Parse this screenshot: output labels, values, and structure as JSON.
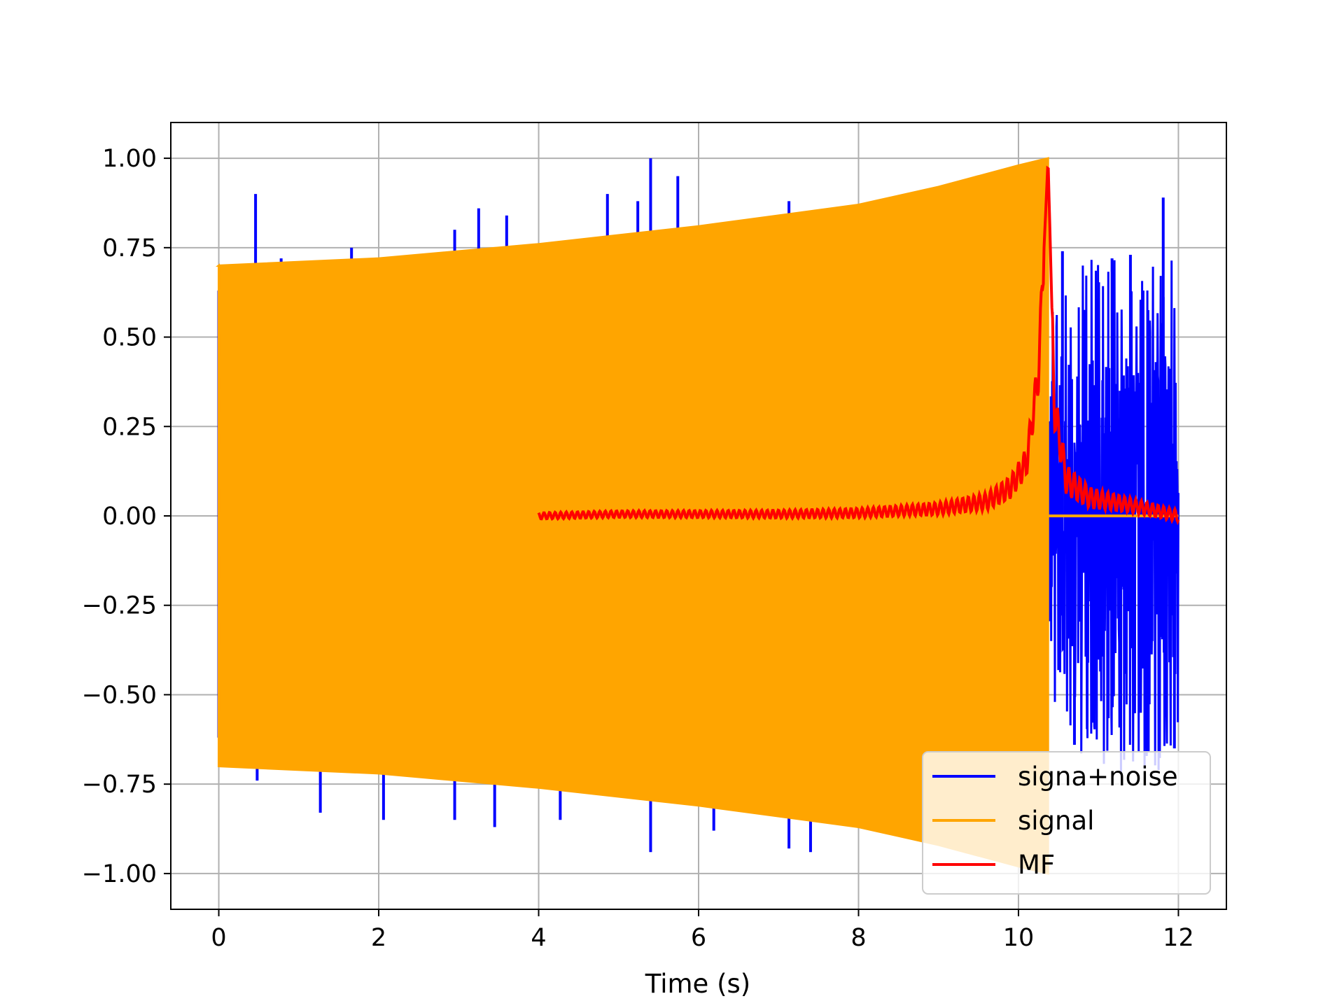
{
  "chart_data": {
    "type": "line",
    "title": "",
    "xlabel": "Time (s)",
    "ylabel": "",
    "xlim": [
      -0.6,
      12.6
    ],
    "ylim": [
      -1.1,
      1.1
    ],
    "grid": true,
    "legend_position": "bottom-right",
    "xticks": [
      0,
      2,
      4,
      6,
      8,
      10,
      12
    ],
    "xtick_labels": [
      "0",
      "2",
      "4",
      "6",
      "8",
      "10",
      "12"
    ],
    "yticks": [
      1.0,
      0.75,
      0.5,
      0.25,
      0.0,
      -0.25,
      -0.5,
      -0.75,
      -1.0
    ],
    "ytick_labels": [
      "1.00",
      "0.75",
      "0.50",
      "0.25",
      "0.00",
      "−0.25",
      "−0.50",
      "−0.75",
      "−1.00"
    ],
    "series": [
      {
        "name": "signa+noise",
        "color": "#0000ff",
        "description_points": {
          "spikes": [
            {
              "x": 0.46,
              "y": 0.9
            },
            {
              "x": 0.48,
              "y": -0.74
            },
            {
              "x": 0.78,
              "y": 0.72
            },
            {
              "x": 1.27,
              "y": -0.83
            },
            {
              "x": 1.66,
              "y": 0.75
            },
            {
              "x": 2.06,
              "y": -0.85
            },
            {
              "x": 2.95,
              "y": 0.8
            },
            {
              "x": 2.95,
              "y": -0.85
            },
            {
              "x": 3.25,
              "y": 0.86
            },
            {
              "x": 3.45,
              "y": -0.87
            },
            {
              "x": 3.6,
              "y": 0.84
            },
            {
              "x": 4.27,
              "y": -0.85
            },
            {
              "x": 4.86,
              "y": 0.9
            },
            {
              "x": 5.24,
              "y": 0.88
            },
            {
              "x": 5.4,
              "y": 1.0
            },
            {
              "x": 5.4,
              "y": -0.94
            },
            {
              "x": 5.74,
              "y": 0.95
            },
            {
              "x": 6.19,
              "y": -0.88
            },
            {
              "x": 7.13,
              "y": 0.88
            },
            {
              "x": 7.13,
              "y": -0.93
            },
            {
              "x": 7.4,
              "y": -0.94
            }
          ],
          "tail_start": 10.37,
          "tail_end": 12.0,
          "tail_peaks": [
            {
              "x": 10.55,
              "y": 0.74
            },
            {
              "x": 11.17,
              "y": 0.72
            },
            {
              "x": 11.4,
              "y": 0.73
            },
            {
              "x": 11.81,
              "y": 0.89
            },
            {
              "x": 10.7,
              "y": -0.64
            },
            {
              "x": 11.6,
              "y": -0.65
            },
            {
              "x": 11.95,
              "y": -0.65
            }
          ]
        }
      },
      {
        "name": "signal",
        "color": "#ffa500",
        "envelope": [
          {
            "x": 0.0,
            "y": 0.7
          },
          {
            "x": 2.0,
            "y": 0.72
          },
          {
            "x": 4.0,
            "y": 0.76
          },
          {
            "x": 6.0,
            "y": 0.81
          },
          {
            "x": 8.0,
            "y": 0.87
          },
          {
            "x": 9.0,
            "y": 0.92
          },
          {
            "x": 10.0,
            "y": 0.98
          },
          {
            "x": 10.37,
            "y": 1.0
          }
        ],
        "end_x": 10.37
      },
      {
        "name": "MF",
        "color": "#ff0000",
        "points": [
          {
            "x": 4.0,
            "y": 0.0
          },
          {
            "x": 5.0,
            "y": 0.005
          },
          {
            "x": 6.0,
            "y": 0.005
          },
          {
            "x": 7.0,
            "y": 0.005
          },
          {
            "x": 8.0,
            "y": 0.008
          },
          {
            "x": 9.0,
            "y": 0.02
          },
          {
            "x": 9.6,
            "y": 0.04
          },
          {
            "x": 9.9,
            "y": 0.08
          },
          {
            "x": 10.1,
            "y": 0.15
          },
          {
            "x": 10.25,
            "y": 0.4
          },
          {
            "x": 10.37,
            "y": 1.0
          },
          {
            "x": 10.45,
            "y": 0.3
          },
          {
            "x": 10.6,
            "y": 0.1
          },
          {
            "x": 10.9,
            "y": 0.05
          },
          {
            "x": 11.4,
            "y": 0.03
          },
          {
            "x": 12.0,
            "y": 0.0
          }
        ]
      }
    ]
  }
}
